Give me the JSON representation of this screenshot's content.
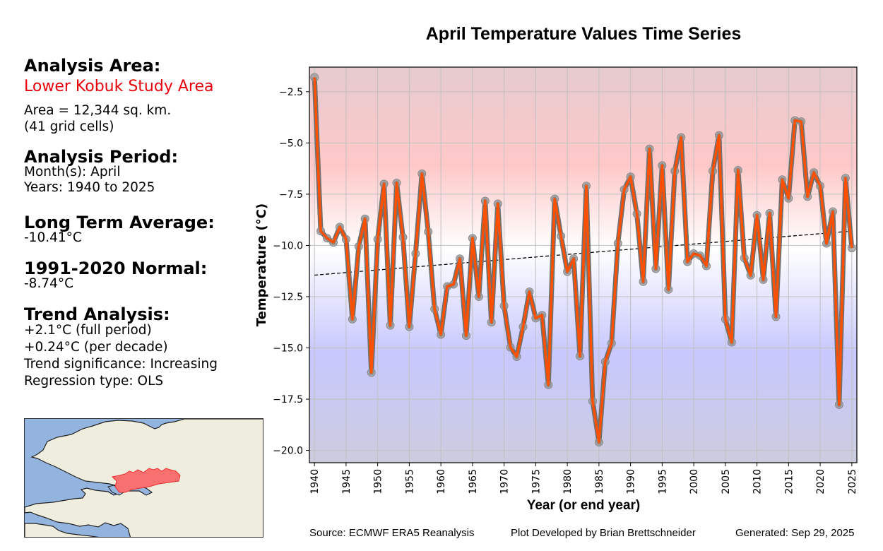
{
  "info_panel": {
    "analysis_area_heading": "Analysis Area:",
    "area_name": "Lower Kobuk Study Area",
    "area_size": "Area = 12,344 sq. km.",
    "grid_cells": "(41 grid cells)",
    "analysis_period_heading": "Analysis Period:",
    "months": "Month(s): April",
    "years": "Years: 1940 to 2025",
    "long_term_avg_heading": "Long Term Average:",
    "long_term_avg_value": "-10.41°C",
    "normal_heading": "1991-2020 Normal:",
    "normal_value": "-8.74°C",
    "trend_heading": "Trend Analysis:",
    "trend_full": "+2.1°C (full period)",
    "trend_decade": "+0.24°C (per decade)",
    "trend_significance": "Trend significance: Increasing",
    "regression_type": "Regression type: OLS"
  },
  "colors": {
    "area_name": "#e8000b",
    "line": "#ff5000",
    "line_outline": "#707070",
    "marker": "#a0a0a0",
    "warm": "#ffc8c8",
    "cold": "#c8c8ff",
    "grid": "#c0c0c0",
    "map_water": "#94b4e0",
    "map_land": "#efedde",
    "map_region": "#f87070"
  },
  "map": {
    "icon": "location-map",
    "highlight": "Lower Kobuk Study Area"
  },
  "footer": {
    "source": "Source: ECMWF ERA5 Reanalysis",
    "developer": "Plot Developed by Brian Brettschneider",
    "generated": "Generated: Sep 29, 2025"
  },
  "chart_data": {
    "type": "line",
    "title": "April Temperature Values Time Series",
    "xlabel": "Year (or end year)",
    "ylabel": "Temperature (°C)",
    "xlim": [
      1939.2,
      2025.8
    ],
    "ylim": [
      -20.6,
      -1.3
    ],
    "grid": true,
    "x_ticks": [
      1940,
      1945,
      1950,
      1955,
      1960,
      1965,
      1970,
      1975,
      1980,
      1985,
      1990,
      1995,
      2000,
      2005,
      2010,
      2015,
      2020,
      2025
    ],
    "y_ticks": [
      -2.5,
      -5.0,
      -7.5,
      -10.0,
      -12.5,
      -15.0,
      -17.5,
      -20.0
    ],
    "y_tick_labels": [
      "−2.5",
      "−5.0",
      "−7.5",
      "−10.0",
      "−12.5",
      "−15.0",
      "−17.5",
      "−20.0"
    ],
    "x": [
      1940,
      1941,
      1942,
      1943,
      1944,
      1945,
      1946,
      1947,
      1948,
      1949,
      1950,
      1951,
      1952,
      1953,
      1954,
      1955,
      1956,
      1957,
      1958,
      1959,
      1960,
      1961,
      1962,
      1963,
      1964,
      1965,
      1966,
      1967,
      1968,
      1969,
      1970,
      1971,
      1972,
      1973,
      1974,
      1975,
      1976,
      1977,
      1978,
      1979,
      1980,
      1981,
      1982,
      1983,
      1984,
      1985,
      1986,
      1987,
      1988,
      1989,
      1990,
      1991,
      1992,
      1993,
      1994,
      1995,
      1996,
      1997,
      1998,
      1999,
      2000,
      2001,
      2002,
      2003,
      2004,
      2005,
      2006,
      2007,
      2008,
      2009,
      2010,
      2011,
      2012,
      2013,
      2014,
      2015,
      2016,
      2017,
      2018,
      2019,
      2020,
      2021,
      2022,
      2023,
      2024,
      2025
    ],
    "series": [
      {
        "name": "April temperature",
        "values": [
          -1.8,
          -9.3,
          -9.65,
          -9.85,
          -9.1,
          -9.7,
          -13.6,
          -10.05,
          -8.7,
          -16.2,
          -9.7,
          -7.0,
          -13.9,
          -6.95,
          -9.6,
          -13.97,
          -10.4,
          -6.5,
          -9.33,
          -13.1,
          -14.35,
          -12.0,
          -11.9,
          -10.65,
          -14.4,
          -9.65,
          -12.5,
          -7.83,
          -13.75,
          -7.97,
          -12.95,
          -14.97,
          -15.43,
          -13.97,
          -12.26,
          -13.55,
          -13.4,
          -16.8,
          -7.73,
          -9.54,
          -11.28,
          -10.65,
          -15.4,
          -7.1,
          -17.6,
          -19.6,
          -15.68,
          -14.77,
          -9.9,
          -7.27,
          -6.65,
          -8.46,
          -11.77,
          -5.29,
          -11.14,
          -6.1,
          -12.15,
          -6.37,
          -4.73,
          -10.8,
          -10.4,
          -10.5,
          -11.0,
          -6.37,
          -4.63,
          -13.6,
          -14.73,
          -6.33,
          -10.62,
          -11.46,
          -8.53,
          -11.67,
          -8.43,
          -13.48,
          -6.79,
          -7.7,
          -3.9,
          -3.96,
          -7.62,
          -6.44,
          -7.1,
          -9.9,
          -8.35,
          -17.77,
          -6.72,
          -10.13
        ]
      }
    ],
    "trend_line": {
      "name": "OLS trend",
      "x": [
        1940,
        2025
      ],
      "y": [
        -11.45,
        -9.3
      ]
    },
    "background_gradient": "warm above long-term average, cold below"
  }
}
